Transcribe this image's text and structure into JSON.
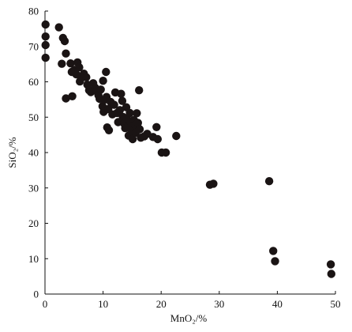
{
  "chart_data": {
    "type": "scatter",
    "title": "",
    "xlabel": "MnO₂/%",
    "ylabel": "SiO₂/%",
    "xlim": [
      0,
      50
    ],
    "ylim": [
      0,
      80
    ],
    "xticks": [
      "0",
      "10",
      "20",
      "30",
      "40",
      "50"
    ],
    "yticks": [
      "0",
      "10",
      "20",
      "30",
      "40",
      "50",
      "60",
      "70",
      "80"
    ],
    "grid": false,
    "legend": "none",
    "marker_color": "#1a1414",
    "series": [
      {
        "points": [
          [
            0.1,
            76.2
          ],
          [
            0.1,
            72.8
          ],
          [
            0.1,
            70.4
          ],
          [
            0.1,
            66.8
          ],
          [
            2.4,
            75.4
          ],
          [
            2.9,
            65.1
          ],
          [
            3.1,
            72.4
          ],
          [
            3.4,
            71.5
          ],
          [
            3.6,
            68.0
          ],
          [
            3.6,
            55.3
          ],
          [
            4.4,
            65.2
          ],
          [
            4.6,
            62.8
          ],
          [
            4.7,
            55.9
          ],
          [
            5.1,
            63.4
          ],
          [
            5.4,
            62.1
          ],
          [
            5.6,
            65.5
          ],
          [
            5.9,
            64.1
          ],
          [
            6.0,
            60.1
          ],
          [
            6.4,
            61.2
          ],
          [
            6.7,
            62.3
          ],
          [
            7.1,
            61.3
          ],
          [
            7.3,
            59.2
          ],
          [
            7.6,
            57.6
          ],
          [
            7.9,
            57.1
          ],
          [
            8.3,
            59.6
          ],
          [
            8.6,
            58.4
          ],
          [
            8.9,
            57.3
          ],
          [
            9.2,
            56.2
          ],
          [
            9.4,
            55.2
          ],
          [
            9.6,
            57.8
          ],
          [
            9.9,
            53.1
          ],
          [
            10.0,
            60.3
          ],
          [
            10.1,
            51.5
          ],
          [
            10.2,
            54.9
          ],
          [
            10.5,
            62.8
          ],
          [
            10.6,
            55.7
          ],
          [
            10.7,
            47.1
          ],
          [
            10.9,
            52.3
          ],
          [
            11.0,
            46.3
          ],
          [
            11.3,
            54.3
          ],
          [
            11.6,
            50.8
          ],
          [
            11.9,
            53.5
          ],
          [
            12.1,
            57.0
          ],
          [
            12.4,
            51.2
          ],
          [
            12.6,
            48.6
          ],
          [
            12.9,
            52.0
          ],
          [
            13.1,
            56.6
          ],
          [
            13.3,
            54.6
          ],
          [
            13.4,
            50.1
          ],
          [
            13.6,
            48.3
          ],
          [
            13.8,
            46.9
          ],
          [
            14.0,
            52.8
          ],
          [
            14.1,
            49.6
          ],
          [
            14.3,
            47.3
          ],
          [
            14.4,
            44.8
          ],
          [
            14.6,
            51.2
          ],
          [
            14.8,
            48.6
          ],
          [
            14.9,
            46.1
          ],
          [
            15.1,
            43.8
          ],
          [
            15.3,
            49.2
          ],
          [
            15.5,
            47.8
          ],
          [
            15.6,
            45.6
          ],
          [
            15.8,
            51.1
          ],
          [
            16.0,
            48.4
          ],
          [
            16.2,
            57.6
          ],
          [
            16.3,
            46.6
          ],
          [
            16.5,
            44.2
          ],
          [
            17.1,
            44.6
          ],
          [
            17.6,
            45.3
          ],
          [
            18.6,
            44.4
          ],
          [
            19.2,
            47.2
          ],
          [
            19.4,
            43.8
          ],
          [
            20.1,
            40.0
          ],
          [
            20.8,
            40.0
          ],
          [
            22.6,
            44.7
          ],
          [
            28.4,
            30.9
          ],
          [
            29.0,
            31.2
          ],
          [
            38.6,
            31.9
          ],
          [
            39.3,
            12.2
          ],
          [
            39.6,
            9.3
          ],
          [
            49.2,
            8.4
          ],
          [
            49.3,
            5.7
          ]
        ]
      }
    ]
  }
}
